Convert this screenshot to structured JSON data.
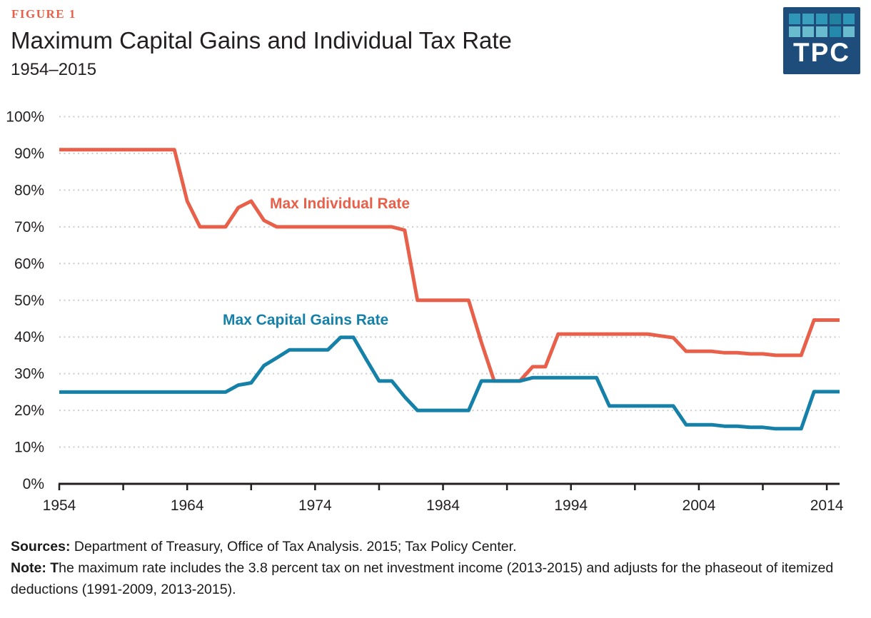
{
  "header": {
    "figure_label": "FIGURE 1",
    "title": "Maximum Capital Gains and Individual Tax Rate",
    "subtitle": "1954–2015",
    "logo_text": "TPC"
  },
  "colors": {
    "orange": "#E8604A",
    "teal": "#1581A8",
    "navy": "#1E4D7B",
    "grid": "#CCCCCC",
    "axis": "#231F20",
    "title_text": "#231F20"
  },
  "logo": {
    "squares": [
      [
        "#2E96B6",
        "#3AA0BD",
        "#2E96B6",
        "#21819F",
        "#2E96B6"
      ],
      [
        "#69BCCE",
        "#69BCCE",
        "#69BCCE",
        "#2589AC",
        "#69BCCE"
      ]
    ]
  },
  "chart_data": {
    "type": "line",
    "title": "Maximum Capital Gains and Individual Tax Rate",
    "subtitle": "1954–2015",
    "legend_position": "inline-labels-on-plot",
    "grid": "dotted horizontal",
    "x": {
      "start": 1954,
      "end": 2015,
      "tick_interval": 5,
      "decade_labels": [
        "1954",
        "1964",
        "1974",
        "1984",
        "1994",
        "2004",
        "2014"
      ]
    },
    "y": {
      "min": 0,
      "max": 100,
      "tick_labels": [
        "0%",
        "10%",
        "20%",
        "30%",
        "40%",
        "50%",
        "60%",
        "70%",
        "80%",
        "90%",
        "100%"
      ]
    },
    "series": [
      {
        "id": "max-individual-rate",
        "name": "Max Individual Rate",
        "color": "#E8604A",
        "label_pos": {
          "x": 378,
          "y": 292
        },
        "start_year": 1954,
        "values": [
          91,
          91,
          91,
          91,
          91,
          91,
          91,
          91,
          91,
          91,
          77,
          70,
          70,
          70,
          75.25,
          77,
          71.75,
          70,
          70,
          70,
          70,
          70,
          70,
          70,
          70,
          70,
          70,
          69.1,
          50,
          50,
          50,
          50,
          50,
          38.5,
          28,
          28,
          28,
          31.9,
          31.9,
          40.8,
          40.8,
          40.8,
          40.8,
          40.8,
          40.8,
          40.8,
          40.8,
          40.3,
          39.8,
          36.1,
          36.1,
          36.1,
          35.7,
          35.7,
          35.4,
          35.4,
          35,
          35,
          35,
          44.6,
          44.6,
          44.6
        ]
      },
      {
        "id": "max-capital-gains-rate",
        "name": "Max Capital Gains Rate",
        "color": "#1581A8",
        "label_pos": {
          "x": 312,
          "y": 455
        },
        "start_year": 1954,
        "values": [
          25,
          25,
          25,
          25,
          25,
          25,
          25,
          25,
          25,
          25,
          25,
          25,
          25,
          25,
          26.9,
          27.5,
          32.2,
          34.3,
          36.5,
          36.5,
          36.5,
          36.5,
          39.9,
          39.9,
          33.9,
          28,
          28,
          23.7,
          20,
          20,
          20,
          20,
          20,
          28,
          28,
          28,
          28,
          28.9,
          28.9,
          28.9,
          28.9,
          28.9,
          28.9,
          21.2,
          21.2,
          21.2,
          21.2,
          21.2,
          21.2,
          16.1,
          16.1,
          16.1,
          15.7,
          15.7,
          15.4,
          15.4,
          15,
          15,
          15,
          25.1,
          25.1,
          25.1
        ]
      }
    ]
  },
  "footer": {
    "sources_label": "Sources:",
    "sources_text": " Department of Treasury, Office of Tax Analysis. 2015; Tax Policy Center.",
    "note_label": "Note: T",
    "note_text": "he maximum rate includes the 3.8 percent tax on net investment income (2013-2015) and adjusts for the phaseout of itemized deductions (1991-2009, 2013-2015)."
  }
}
